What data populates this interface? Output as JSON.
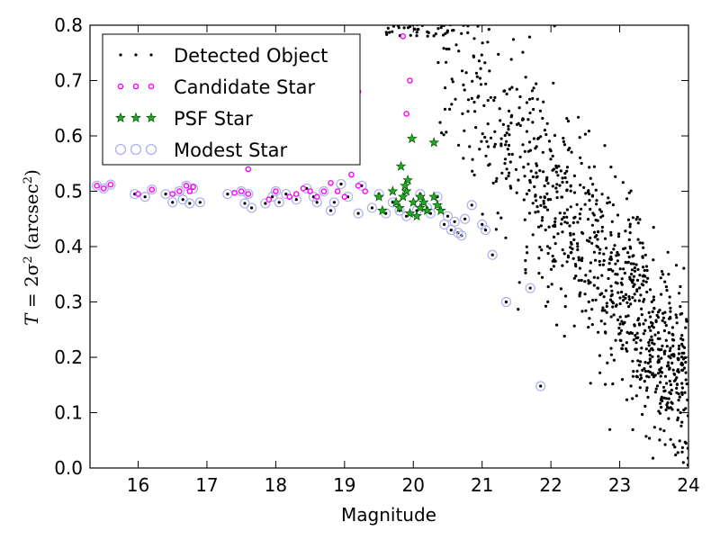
{
  "chart_data": {
    "type": "scatter",
    "title": "",
    "xlabel": "Magnitude",
    "ylabel": {
      "prefix": "T",
      "eq": " = 2σ",
      "sup": "2",
      "unit_open": " (arcsec",
      "unit_sup": "2",
      "unit_close": ")"
    },
    "xlim": [
      15.3,
      24.0
    ],
    "ylim": [
      0.0,
      0.8
    ],
    "xticks": [
      "16",
      "17",
      "18",
      "19",
      "20",
      "21",
      "22",
      "23",
      "24"
    ],
    "yticks": [
      "0.0",
      "0.1",
      "0.2",
      "0.3",
      "0.4",
      "0.5",
      "0.6",
      "0.7",
      "0.8"
    ],
    "grid": false,
    "legend_position": "top-left",
    "legend": [
      {
        "label": "Detected Object",
        "marker": "dot",
        "color": "#000000"
      },
      {
        "label": "Candidate Star",
        "marker": "small-circle",
        "color": "#ff00ff"
      },
      {
        "label": "PSF Star",
        "marker": "star",
        "color": "#00a000"
      },
      {
        "label": "Modest Star",
        "marker": "open-circle",
        "color": "#b0b0f0"
      }
    ],
    "series": [
      {
        "name": "Candidate Star",
        "points": [
          [
            15.4,
            0.51
          ],
          [
            15.5,
            0.505
          ],
          [
            15.6,
            0.512
          ],
          [
            16.0,
            0.495
          ],
          [
            16.2,
            0.503
          ],
          [
            16.5,
            0.495
          ],
          [
            16.6,
            0.5
          ],
          [
            16.7,
            0.51
          ],
          [
            16.75,
            0.5
          ],
          [
            16.8,
            0.508
          ],
          [
            17.4,
            0.497
          ],
          [
            17.5,
            0.5
          ],
          [
            17.6,
            0.495
          ],
          [
            17.9,
            0.485
          ],
          [
            18.0,
            0.5
          ],
          [
            18.2,
            0.49
          ],
          [
            18.3,
            0.495
          ],
          [
            18.4,
            0.505
          ],
          [
            18.5,
            0.5
          ],
          [
            18.6,
            0.49
          ],
          [
            18.7,
            0.5
          ],
          [
            18.8,
            0.515
          ],
          [
            18.9,
            0.5
          ],
          [
            19.0,
            0.49
          ],
          [
            19.1,
            0.53
          ],
          [
            19.2,
            0.51
          ],
          [
            19.3,
            0.5
          ],
          [
            19.2,
            0.68
          ],
          [
            19.85,
            0.78
          ],
          [
            19.95,
            0.7
          ],
          [
            19.9,
            0.64
          ],
          [
            17.6,
            0.54
          ]
        ]
      },
      {
        "name": "PSF Star",
        "points": [
          [
            19.5,
            0.49
          ],
          [
            19.55,
            0.465
          ],
          [
            19.7,
            0.5
          ],
          [
            19.75,
            0.48
          ],
          [
            19.8,
            0.47
          ],
          [
            19.82,
            0.545
          ],
          [
            19.85,
            0.49
          ],
          [
            19.9,
            0.5
          ],
          [
            19.92,
            0.52
          ],
          [
            19.95,
            0.46
          ],
          [
            19.98,
            0.595
          ],
          [
            20.0,
            0.48
          ],
          [
            20.05,
            0.455
          ],
          [
            20.1,
            0.47
          ],
          [
            20.15,
            0.48
          ],
          [
            20.2,
            0.465
          ],
          [
            20.3,
            0.588
          ],
          [
            20.3,
            0.49
          ],
          [
            20.35,
            0.475
          ],
          [
            20.4,
            0.465
          ],
          [
            19.88,
            0.51
          ],
          [
            20.1,
            0.49
          ]
        ]
      },
      {
        "name": "Modest Star",
        "points": [
          [
            15.4,
            0.51
          ],
          [
            15.5,
            0.505
          ],
          [
            15.6,
            0.512
          ],
          [
            15.95,
            0.495
          ],
          [
            16.1,
            0.49
          ],
          [
            16.2,
            0.503
          ],
          [
            16.4,
            0.495
          ],
          [
            16.5,
            0.48
          ],
          [
            16.6,
            0.5
          ],
          [
            16.65,
            0.485
          ],
          [
            16.7,
            0.51
          ],
          [
            16.75,
            0.478
          ],
          [
            16.8,
            0.505
          ],
          [
            16.9,
            0.48
          ],
          [
            17.3,
            0.495
          ],
          [
            17.5,
            0.5
          ],
          [
            17.55,
            0.478
          ],
          [
            17.6,
            0.495
          ],
          [
            17.65,
            0.47
          ],
          [
            17.85,
            0.478
          ],
          [
            17.95,
            0.49
          ],
          [
            18.0,
            0.5
          ],
          [
            18.05,
            0.48
          ],
          [
            18.15,
            0.495
          ],
          [
            18.3,
            0.485
          ],
          [
            18.45,
            0.505
          ],
          [
            18.55,
            0.49
          ],
          [
            18.6,
            0.48
          ],
          [
            18.7,
            0.5
          ],
          [
            18.8,
            0.465
          ],
          [
            18.85,
            0.48
          ],
          [
            18.95,
            0.513
          ],
          [
            19.05,
            0.49
          ],
          [
            19.2,
            0.46
          ],
          [
            19.25,
            0.51
          ],
          [
            19.4,
            0.47
          ],
          [
            19.5,
            0.495
          ],
          [
            19.6,
            0.46
          ],
          [
            19.7,
            0.48
          ],
          [
            19.8,
            0.465
          ],
          [
            19.9,
            0.455
          ],
          [
            20.05,
            0.465
          ],
          [
            20.1,
            0.495
          ],
          [
            20.2,
            0.47
          ],
          [
            20.25,
            0.46
          ],
          [
            20.35,
            0.49
          ],
          [
            20.45,
            0.44
          ],
          [
            20.5,
            0.455
          ],
          [
            20.55,
            0.43
          ],
          [
            20.6,
            0.445
          ],
          [
            20.65,
            0.425
          ],
          [
            20.7,
            0.42
          ],
          [
            20.75,
            0.45
          ],
          [
            20.85,
            0.475
          ],
          [
            21.0,
            0.44
          ],
          [
            21.05,
            0.43
          ],
          [
            21.15,
            0.385
          ],
          [
            21.35,
            0.3
          ],
          [
            21.7,
            0.325
          ],
          [
            21.85,
            0.148
          ]
        ]
      }
    ]
  }
}
